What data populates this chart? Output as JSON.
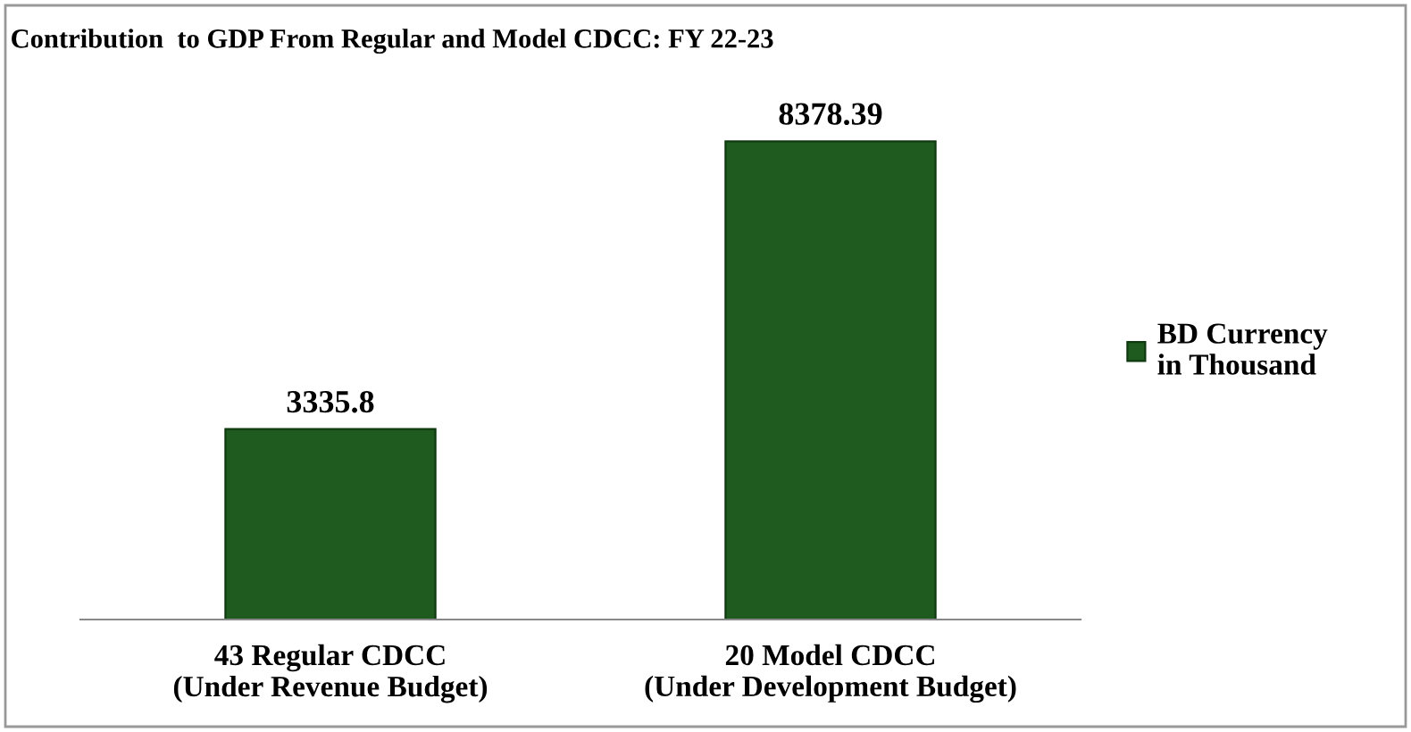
{
  "chart_data": {
    "type": "bar",
    "title": "Contribution  to GDP From Regular and Model CDCC: FY 22-23",
    "categories": [
      "43 Regular CDCC\n(Under Revenue Budget)",
      "20 Model CDCC\n(Under Development Budget)"
    ],
    "series": [
      {
        "name": "BD Currency\nin Thousand",
        "color": "#1f5a1f",
        "values": [
          3335.8,
          8378.39
        ]
      }
    ],
    "data_labels": true,
    "legend": "right",
    "grid": false
  }
}
